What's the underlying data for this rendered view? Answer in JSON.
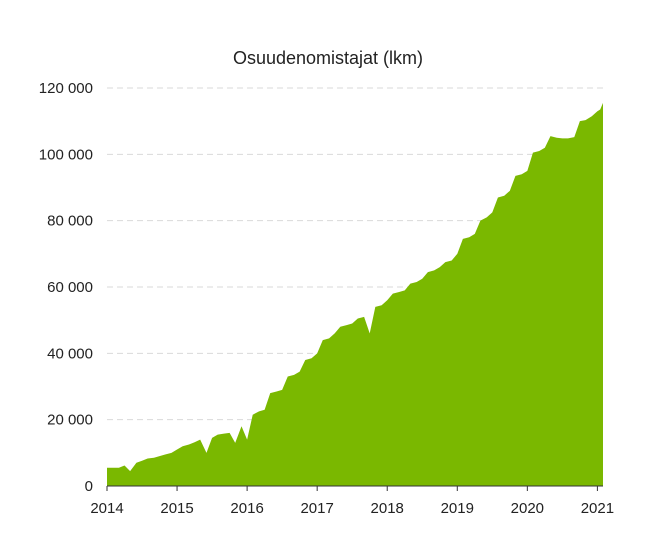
{
  "chart_data": {
    "type": "area",
    "title": "Osuudenomistajat (lkm)",
    "xlabel": "",
    "ylabel": "",
    "x_ticks": [
      "2014",
      "2015",
      "2016",
      "2017",
      "2018",
      "2019",
      "2020",
      "2021"
    ],
    "y_ticks": [
      "0",
      "20 000",
      "40 000",
      "60 000",
      "80 000",
      "100 000",
      "120 000"
    ],
    "xlim": [
      2014.0,
      2021.08
    ],
    "ylim": [
      0,
      120000
    ],
    "grid": "horizontal dashed",
    "color": "#7ab800",
    "series": [
      {
        "points": [
          [
            2014.0,
            5500
          ],
          [
            2014.17,
            5500
          ],
          [
            2014.25,
            6200
          ],
          [
            2014.33,
            4500
          ],
          [
            2014.42,
            7000
          ],
          [
            2014.5,
            7600
          ],
          [
            2014.58,
            8300
          ],
          [
            2014.67,
            8500
          ],
          [
            2014.75,
            9000
          ],
          [
            2014.83,
            9500
          ],
          [
            2014.92,
            10000
          ],
          [
            2015.0,
            11000
          ],
          [
            2015.08,
            12000
          ],
          [
            2015.17,
            12500
          ],
          [
            2015.25,
            13200
          ],
          [
            2015.33,
            14000
          ],
          [
            2015.42,
            10000
          ],
          [
            2015.5,
            14500
          ],
          [
            2015.58,
            15500
          ],
          [
            2015.67,
            15800
          ],
          [
            2015.75,
            16000
          ],
          [
            2015.83,
            13000
          ],
          [
            2015.92,
            18000
          ],
          [
            2016.0,
            14000
          ],
          [
            2016.08,
            21500
          ],
          [
            2016.17,
            22500
          ],
          [
            2016.25,
            23000
          ],
          [
            2016.33,
            28000
          ],
          [
            2016.42,
            28500
          ],
          [
            2016.5,
            29000
          ],
          [
            2016.58,
            33000
          ],
          [
            2016.67,
            33500
          ],
          [
            2016.75,
            34500
          ],
          [
            2016.83,
            38000
          ],
          [
            2016.92,
            38500
          ],
          [
            2017.0,
            40000
          ],
          [
            2017.08,
            44000
          ],
          [
            2017.17,
            44500
          ],
          [
            2017.25,
            46000
          ],
          [
            2017.33,
            48000
          ],
          [
            2017.42,
            48500
          ],
          [
            2017.5,
            49000
          ],
          [
            2017.58,
            50500
          ],
          [
            2017.67,
            51000
          ],
          [
            2017.75,
            46000
          ],
          [
            2017.83,
            54000
          ],
          [
            2017.92,
            54500
          ],
          [
            2018.0,
            56000
          ],
          [
            2018.08,
            58000
          ],
          [
            2018.17,
            58500
          ],
          [
            2018.25,
            59000
          ],
          [
            2018.33,
            61000
          ],
          [
            2018.42,
            61500
          ],
          [
            2018.5,
            62500
          ],
          [
            2018.58,
            64500
          ],
          [
            2018.67,
            65000
          ],
          [
            2018.75,
            66000
          ],
          [
            2018.83,
            67500
          ],
          [
            2018.92,
            68000
          ],
          [
            2019.0,
            70000
          ],
          [
            2019.08,
            74500
          ],
          [
            2019.17,
            75000
          ],
          [
            2019.25,
            76000
          ],
          [
            2019.33,
            80000
          ],
          [
            2019.42,
            81000
          ],
          [
            2019.5,
            82500
          ],
          [
            2019.58,
            87000
          ],
          [
            2019.67,
            87500
          ],
          [
            2019.75,
            89000
          ],
          [
            2019.83,
            93500
          ],
          [
            2019.92,
            94000
          ],
          [
            2020.0,
            95000
          ],
          [
            2020.08,
            100500
          ],
          [
            2020.17,
            101000
          ],
          [
            2020.25,
            102000
          ],
          [
            2020.33,
            105500
          ],
          [
            2020.42,
            105000
          ],
          [
            2020.5,
            104800
          ],
          [
            2020.58,
            104800
          ],
          [
            2020.67,
            105200
          ],
          [
            2020.75,
            110000
          ],
          [
            2020.83,
            110300
          ],
          [
            2020.92,
            111500
          ],
          [
            2021.0,
            113000
          ],
          [
            2021.04,
            113500
          ],
          [
            2021.08,
            115500
          ]
        ]
      }
    ]
  }
}
